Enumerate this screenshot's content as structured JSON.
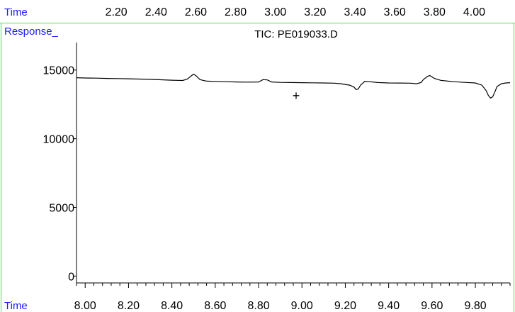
{
  "top_axis": {
    "label": "Time",
    "ticks": [
      "2.20",
      "2.40",
      "2.60",
      "2.80",
      "3.00",
      "3.20",
      "3.40",
      "3.60",
      "3.80",
      "4.00"
    ],
    "range": [
      2.0,
      4.18
    ]
  },
  "header": {
    "response_label": "Response_",
    "title": "TIC: PE019033.D"
  },
  "cursor_symbol": "+",
  "colors": {
    "axis_label": "#1a1aff",
    "separator": "#5ad85a",
    "trace": "#000000"
  },
  "chart_data": {
    "type": "line",
    "title": "TIC: PE019033.D",
    "xlabel": "Time",
    "ylabel": "Response_",
    "xlim": [
      7.96,
      9.96
    ],
    "ylim": [
      -500,
      17000
    ],
    "x_ticks": [
      "8.00",
      "8.20",
      "8.40",
      "8.60",
      "8.80",
      "9.00",
      "9.20",
      "9.40",
      "9.60",
      "9.80"
    ],
    "x_tick_values": [
      8.0,
      8.2,
      8.4,
      8.6,
      8.8,
      9.0,
      9.2,
      9.4,
      9.6,
      9.8
    ],
    "y_ticks": [
      "0",
      "5000",
      "10000",
      "15000"
    ],
    "y_tick_values": [
      0,
      5000,
      10000,
      15000
    ],
    "grid": false,
    "series": [
      {
        "x": [
          7.96,
          8.0,
          8.05,
          8.1,
          8.15,
          8.2,
          8.25,
          8.3,
          8.35,
          8.4,
          8.45,
          8.47,
          8.49,
          8.5,
          8.51,
          8.53,
          8.56,
          8.6,
          8.65,
          8.7,
          8.75,
          8.8,
          8.82,
          8.84,
          8.86,
          8.9,
          8.95,
          9.0,
          9.05,
          9.1,
          9.15,
          9.18,
          9.2,
          9.22,
          9.24,
          9.25,
          9.26,
          9.27,
          9.29,
          9.31,
          9.35,
          9.4,
          9.45,
          9.5,
          9.53,
          9.55,
          9.56,
          9.58,
          9.59,
          9.61,
          9.64,
          9.7,
          9.75,
          9.8,
          9.83,
          9.85,
          9.86,
          9.87,
          9.88,
          9.89,
          9.9,
          9.92,
          9.94,
          9.96
        ],
        "y": [
          14440,
          14420,
          14410,
          14390,
          14380,
          14360,
          14340,
          14320,
          14290,
          14260,
          14240,
          14330,
          14580,
          14700,
          14600,
          14300,
          14190,
          14170,
          14150,
          14130,
          14120,
          14130,
          14300,
          14280,
          14130,
          14100,
          14090,
          14080,
          14070,
          14060,
          14040,
          14000,
          13950,
          13900,
          13760,
          13580,
          13620,
          13900,
          14170,
          14150,
          14090,
          14060,
          14050,
          14040,
          14000,
          14100,
          14300,
          14550,
          14600,
          14400,
          14250,
          14150,
          14100,
          14060,
          13900,
          13500,
          13150,
          12960,
          13050,
          13400,
          13800,
          14000,
          14060,
          14080
        ]
      }
    ]
  }
}
